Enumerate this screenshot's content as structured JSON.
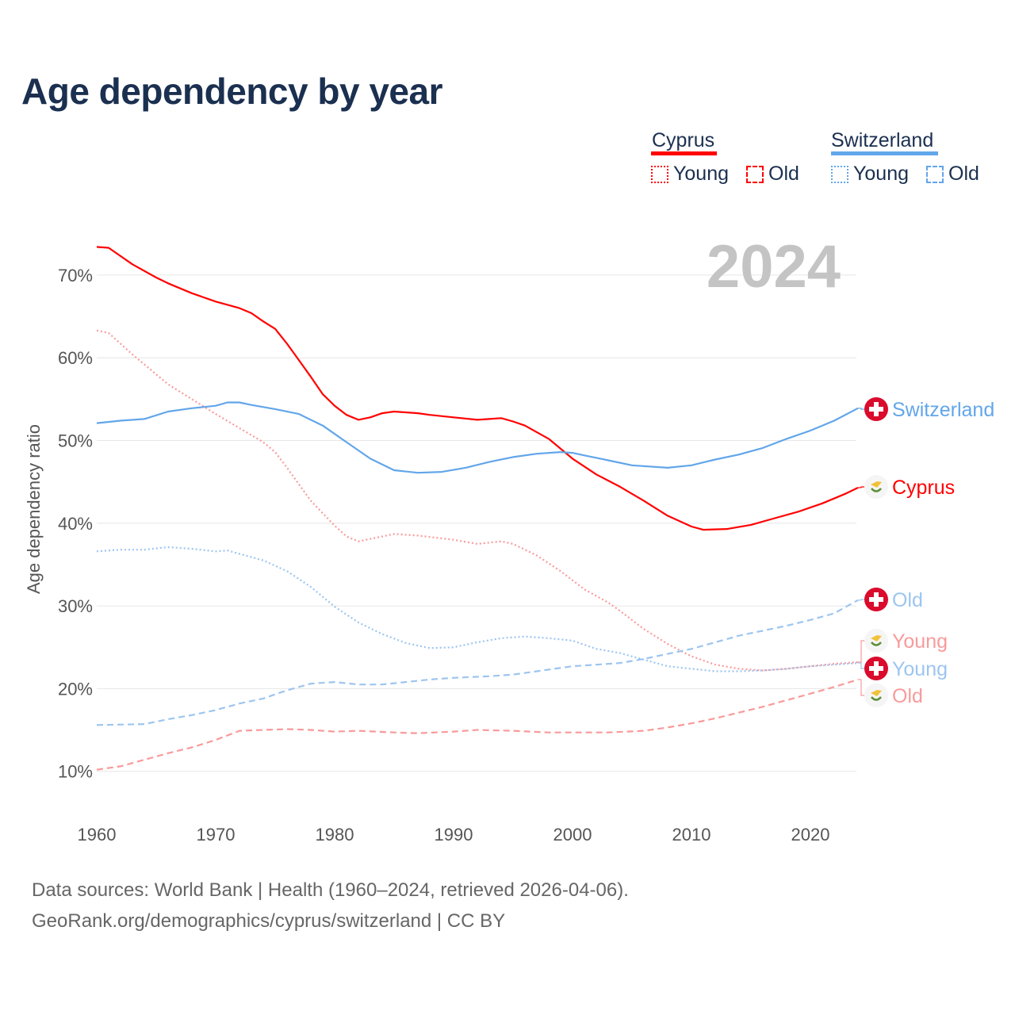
{
  "chart_data": {
    "type": "line",
    "title": "Age dependency by year",
    "xlabel": "",
    "ylabel": "Age dependency ratio",
    "xlim": [
      1960,
      2024
    ],
    "ylim": [
      0,
      75
    ],
    "x_ticks": [
      1960,
      1970,
      1980,
      1990,
      2000,
      2010,
      2020
    ],
    "y_ticks": [
      10,
      20,
      30,
      40,
      50,
      60,
      70
    ],
    "y_tick_labels": [
      "10%",
      "20%",
      "30%",
      "40%",
      "50%",
      "60%",
      "70%"
    ],
    "grid": true,
    "year_watermark": "2024",
    "legend": {
      "placement": "top-right",
      "groups": [
        {
          "country": "Cyprus",
          "color": "#ff0000",
          "items": [
            "Young",
            "Old"
          ]
        },
        {
          "country": "Switzerland",
          "color": "#62a6ea",
          "items": [
            "Young",
            "Old"
          ]
        }
      ]
    },
    "series": [
      {
        "name": "Cyprus",
        "label": "Cyprus",
        "style": "solid",
        "color": "#ff0000",
        "x": [
          1960,
          1961,
          1963,
          1965,
          1966,
          1968,
          1970,
          1972,
          1973,
          1974,
          1975,
          1976,
          1978,
          1979,
          1980,
          1981,
          1982,
          1983,
          1984,
          1985,
          1987,
          1988,
          1990,
          1992,
          1993,
          1994,
          1995,
          1996,
          1998,
          2000,
          2002,
          2004,
          2006,
          2008,
          2010,
          2011,
          2013,
          2015,
          2017,
          2019,
          2021,
          2023,
          2024
        ],
        "y": [
          73.4,
          73.3,
          71.3,
          69.7,
          69.0,
          67.8,
          66.8,
          66.0,
          65.4,
          64.4,
          63.5,
          61.7,
          57.7,
          55.6,
          54.2,
          53.1,
          52.5,
          52.8,
          53.3,
          53.5,
          53.3,
          53.1,
          52.8,
          52.5,
          52.6,
          52.7,
          52.3,
          51.8,
          50.2,
          47.8,
          45.9,
          44.4,
          42.7,
          40.9,
          39.6,
          39.2,
          39.3,
          39.8,
          40.6,
          41.4,
          42.4,
          43.6,
          44.3
        ]
      },
      {
        "name": "Cyprus Young",
        "label": "Young",
        "style": "dotted",
        "color": "#f99a9a",
        "x": [
          1960,
          1961,
          1963,
          1965,
          1966,
          1968,
          1970,
          1972,
          1974,
          1975,
          1976,
          1978,
          1980,
          1981,
          1982,
          1983,
          1985,
          1987,
          1990,
          1992,
          1994,
          1995,
          1997,
          1999,
          2001,
          2003,
          2004,
          2006,
          2008,
          2010,
          2012,
          2014,
          2016,
          2018,
          2020,
          2022,
          2024
        ],
        "y": [
          63.3,
          63.0,
          60.4,
          58.0,
          56.8,
          55.0,
          53.2,
          51.5,
          49.8,
          48.6,
          46.7,
          42.7,
          39.7,
          38.4,
          37.8,
          38.1,
          38.7,
          38.5,
          38.0,
          37.5,
          37.8,
          37.5,
          36.1,
          34.2,
          32.0,
          30.4,
          29.4,
          27.2,
          25.4,
          23.9,
          22.9,
          22.4,
          22.2,
          22.4,
          22.7,
          23.0,
          23.2
        ]
      },
      {
        "name": "Cyprus Old",
        "label": "Old",
        "style": "dashed",
        "color": "#f99a9a",
        "x": [
          1960,
          1962,
          1964,
          1966,
          1968,
          1970,
          1972,
          1974,
          1976,
          1978,
          1980,
          1982,
          1985,
          1987,
          1990,
          1992,
          1995,
          1998,
          2000,
          2003,
          2006,
          2008,
          2010,
          2012,
          2014,
          2016,
          2018,
          2020,
          2022,
          2024
        ],
        "y": [
          10.2,
          10.6,
          11.4,
          12.2,
          12.9,
          13.8,
          14.9,
          15.0,
          15.1,
          15.0,
          14.8,
          14.9,
          14.7,
          14.6,
          14.8,
          15.0,
          14.9,
          14.7,
          14.7,
          14.7,
          14.9,
          15.3,
          15.8,
          16.4,
          17.1,
          17.8,
          18.6,
          19.4,
          20.2,
          21.1
        ]
      },
      {
        "name": "Switzerland",
        "label": "Switzerland",
        "style": "solid",
        "color": "#62a6ea",
        "x": [
          1960,
          1962,
          1964,
          1966,
          1968,
          1970,
          1971,
          1972,
          1973,
          1975,
          1977,
          1979,
          1980,
          1981,
          1983,
          1985,
          1987,
          1989,
          1991,
          1993,
          1995,
          1997,
          1999,
          2000,
          2001,
          2003,
          2005,
          2008,
          2010,
          2012,
          2014,
          2016,
          2018,
          2020,
          2022,
          2024
        ],
        "y": [
          52.1,
          52.4,
          52.6,
          53.5,
          53.9,
          54.2,
          54.6,
          54.6,
          54.3,
          53.8,
          53.2,
          51.8,
          50.8,
          49.8,
          47.8,
          46.4,
          46.1,
          46.2,
          46.7,
          47.4,
          48.0,
          48.4,
          48.6,
          48.5,
          48.2,
          47.6,
          47.0,
          46.7,
          47.0,
          47.7,
          48.3,
          49.1,
          50.2,
          51.2,
          52.4,
          53.9
        ]
      },
      {
        "name": "Switzerland Young",
        "label": "Young",
        "style": "dotted",
        "color": "#9cc5f0",
        "x": [
          1960,
          1962,
          1964,
          1966,
          1968,
          1970,
          1971,
          1972,
          1974,
          1976,
          1978,
          1980,
          1982,
          1984,
          1986,
          1988,
          1990,
          1992,
          1994,
          1996,
          1998,
          2000,
          2002,
          2004,
          2006,
          2008,
          2010,
          2012,
          2014,
          2016,
          2018,
          2020,
          2022,
          2024
        ],
        "y": [
          36.6,
          36.8,
          36.8,
          37.1,
          36.9,
          36.6,
          36.7,
          36.3,
          35.5,
          34.2,
          32.3,
          29.9,
          28.0,
          26.6,
          25.5,
          24.9,
          25.0,
          25.6,
          26.1,
          26.3,
          26.1,
          25.8,
          24.8,
          24.3,
          23.5,
          22.7,
          22.4,
          22.1,
          22.1,
          22.2,
          22.4,
          22.7,
          22.9,
          23.1
        ]
      },
      {
        "name": "Switzerland Old",
        "label": "Old",
        "style": "dashed",
        "color": "#9cc5f0",
        "x": [
          1960,
          1964,
          1966,
          1968,
          1970,
          1972,
          1974,
          1976,
          1978,
          1980,
          1982,
          1984,
          1986,
          1988,
          1990,
          1993,
          1995,
          1998,
          2000,
          2002,
          2004,
          2006,
          2008,
          2010,
          2012,
          2014,
          2016,
          2018,
          2020,
          2022,
          2024
        ],
        "y": [
          15.6,
          15.7,
          16.3,
          16.8,
          17.4,
          18.2,
          18.8,
          19.8,
          20.6,
          20.8,
          20.5,
          20.5,
          20.8,
          21.1,
          21.3,
          21.5,
          21.7,
          22.3,
          22.7,
          22.9,
          23.1,
          23.6,
          24.2,
          24.8,
          25.6,
          26.4,
          27.0,
          27.6,
          28.3,
          29.1,
          30.7
        ]
      }
    ]
  },
  "footer": {
    "sources": "Data sources: World Bank | Health (1960–2024, retrieved 2026-04-06).",
    "attribution": "GeoRank.org/demographics/cyprus/switzerland | CC BY"
  }
}
